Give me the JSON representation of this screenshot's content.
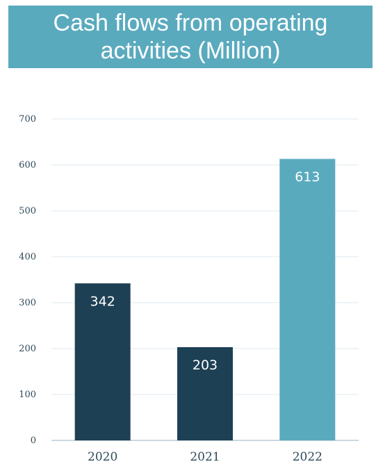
{
  "title": "Cash flows from operating activities (Million)",
  "colors": {
    "banner": "#5aaabe",
    "bar_dark": "#1e4055",
    "bar_highlight": "#5aaabe",
    "grid": "#dde9ef"
  },
  "chart_data": {
    "type": "bar",
    "title": "Cash flows from operating activities (Million)",
    "categories": [
      "2020",
      "2021",
      "2022"
    ],
    "values": [
      342,
      203,
      613
    ],
    "data_labels": [
      "342",
      "203",
      "613"
    ],
    "bar_colors": [
      "#1e4055",
      "#1e4055",
      "#5aaabe"
    ],
    "ylim": [
      0,
      700
    ],
    "yticks": [
      "0",
      "100",
      "200",
      "300",
      "400",
      "500",
      "600",
      "700"
    ],
    "xlabel": "",
    "ylabel": "",
    "grid": true,
    "legend": "none"
  }
}
